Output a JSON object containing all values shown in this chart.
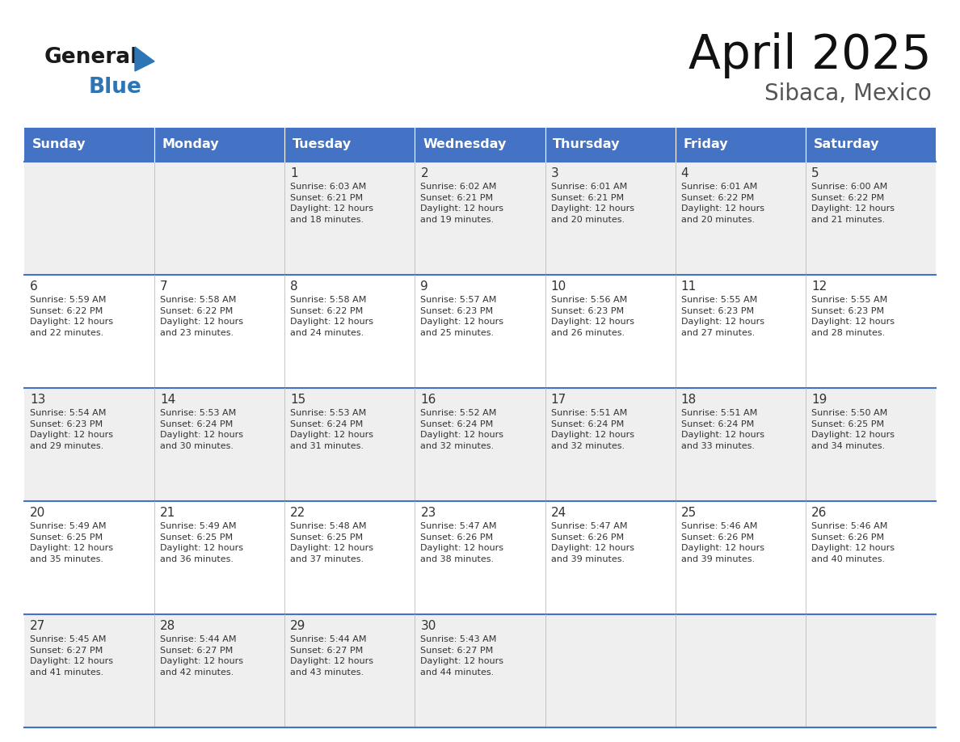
{
  "title": "April 2025",
  "subtitle": "Sibaca, Mexico",
  "days_of_week": [
    "Sunday",
    "Monday",
    "Tuesday",
    "Wednesday",
    "Thursday",
    "Friday",
    "Saturday"
  ],
  "header_bg_color": "#4472C4",
  "header_text_color": "#FFFFFF",
  "cell_bg_even": "#EFEFEF",
  "cell_bg_odd": "#FFFFFF",
  "cell_border_color": "#4472C4",
  "day_number_color": "#333333",
  "cell_text_color": "#333333",
  "title_color": "#111111",
  "subtitle_color": "#555555",
  "logo_general_color": "#1a1a1a",
  "logo_blue_color": "#2E75B6",
  "fig_width": 11.88,
  "fig_height": 9.18,
  "weeks": [
    [
      {
        "day": null,
        "info": null
      },
      {
        "day": null,
        "info": null
      },
      {
        "day": 1,
        "info": "Sunrise: 6:03 AM\nSunset: 6:21 PM\nDaylight: 12 hours\nand 18 minutes."
      },
      {
        "day": 2,
        "info": "Sunrise: 6:02 AM\nSunset: 6:21 PM\nDaylight: 12 hours\nand 19 minutes."
      },
      {
        "day": 3,
        "info": "Sunrise: 6:01 AM\nSunset: 6:21 PM\nDaylight: 12 hours\nand 20 minutes."
      },
      {
        "day": 4,
        "info": "Sunrise: 6:01 AM\nSunset: 6:22 PM\nDaylight: 12 hours\nand 20 minutes."
      },
      {
        "day": 5,
        "info": "Sunrise: 6:00 AM\nSunset: 6:22 PM\nDaylight: 12 hours\nand 21 minutes."
      }
    ],
    [
      {
        "day": 6,
        "info": "Sunrise: 5:59 AM\nSunset: 6:22 PM\nDaylight: 12 hours\nand 22 minutes."
      },
      {
        "day": 7,
        "info": "Sunrise: 5:58 AM\nSunset: 6:22 PM\nDaylight: 12 hours\nand 23 minutes."
      },
      {
        "day": 8,
        "info": "Sunrise: 5:58 AM\nSunset: 6:22 PM\nDaylight: 12 hours\nand 24 minutes."
      },
      {
        "day": 9,
        "info": "Sunrise: 5:57 AM\nSunset: 6:23 PM\nDaylight: 12 hours\nand 25 minutes."
      },
      {
        "day": 10,
        "info": "Sunrise: 5:56 AM\nSunset: 6:23 PM\nDaylight: 12 hours\nand 26 minutes."
      },
      {
        "day": 11,
        "info": "Sunrise: 5:55 AM\nSunset: 6:23 PM\nDaylight: 12 hours\nand 27 minutes."
      },
      {
        "day": 12,
        "info": "Sunrise: 5:55 AM\nSunset: 6:23 PM\nDaylight: 12 hours\nand 28 minutes."
      }
    ],
    [
      {
        "day": 13,
        "info": "Sunrise: 5:54 AM\nSunset: 6:23 PM\nDaylight: 12 hours\nand 29 minutes."
      },
      {
        "day": 14,
        "info": "Sunrise: 5:53 AM\nSunset: 6:24 PM\nDaylight: 12 hours\nand 30 minutes."
      },
      {
        "day": 15,
        "info": "Sunrise: 5:53 AM\nSunset: 6:24 PM\nDaylight: 12 hours\nand 31 minutes."
      },
      {
        "day": 16,
        "info": "Sunrise: 5:52 AM\nSunset: 6:24 PM\nDaylight: 12 hours\nand 32 minutes."
      },
      {
        "day": 17,
        "info": "Sunrise: 5:51 AM\nSunset: 6:24 PM\nDaylight: 12 hours\nand 32 minutes."
      },
      {
        "day": 18,
        "info": "Sunrise: 5:51 AM\nSunset: 6:24 PM\nDaylight: 12 hours\nand 33 minutes."
      },
      {
        "day": 19,
        "info": "Sunrise: 5:50 AM\nSunset: 6:25 PM\nDaylight: 12 hours\nand 34 minutes."
      }
    ],
    [
      {
        "day": 20,
        "info": "Sunrise: 5:49 AM\nSunset: 6:25 PM\nDaylight: 12 hours\nand 35 minutes."
      },
      {
        "day": 21,
        "info": "Sunrise: 5:49 AM\nSunset: 6:25 PM\nDaylight: 12 hours\nand 36 minutes."
      },
      {
        "day": 22,
        "info": "Sunrise: 5:48 AM\nSunset: 6:25 PM\nDaylight: 12 hours\nand 37 minutes."
      },
      {
        "day": 23,
        "info": "Sunrise: 5:47 AM\nSunset: 6:26 PM\nDaylight: 12 hours\nand 38 minutes."
      },
      {
        "day": 24,
        "info": "Sunrise: 5:47 AM\nSunset: 6:26 PM\nDaylight: 12 hours\nand 39 minutes."
      },
      {
        "day": 25,
        "info": "Sunrise: 5:46 AM\nSunset: 6:26 PM\nDaylight: 12 hours\nand 39 minutes."
      },
      {
        "day": 26,
        "info": "Sunrise: 5:46 AM\nSunset: 6:26 PM\nDaylight: 12 hours\nand 40 minutes."
      }
    ],
    [
      {
        "day": 27,
        "info": "Sunrise: 5:45 AM\nSunset: 6:27 PM\nDaylight: 12 hours\nand 41 minutes."
      },
      {
        "day": 28,
        "info": "Sunrise: 5:44 AM\nSunset: 6:27 PM\nDaylight: 12 hours\nand 42 minutes."
      },
      {
        "day": 29,
        "info": "Sunrise: 5:44 AM\nSunset: 6:27 PM\nDaylight: 12 hours\nand 43 minutes."
      },
      {
        "day": 30,
        "info": "Sunrise: 5:43 AM\nSunset: 6:27 PM\nDaylight: 12 hours\nand 44 minutes."
      },
      {
        "day": null,
        "info": null
      },
      {
        "day": null,
        "info": null
      },
      {
        "day": null,
        "info": null
      }
    ]
  ]
}
